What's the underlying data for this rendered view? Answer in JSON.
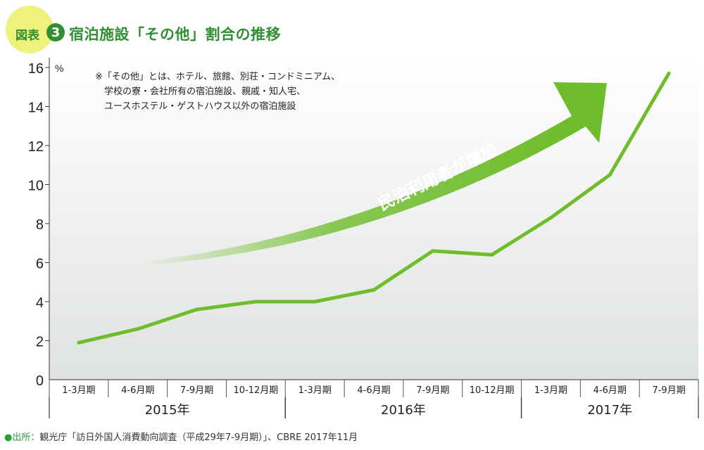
{
  "header": {
    "label": "図表",
    "number": "3",
    "title": "宿泊施設「その他」割合の推移"
  },
  "note": [
    "※「その他」とは、ホテル、旅館、別荘・コンドミニアム、",
    "学校の寮・会社所有の宿泊施設、親戚・知人宅、",
    "ユースホステル・ゲストハウス以外の宿泊施設"
  ],
  "arrow_label": "民泊利用者が増加",
  "source": {
    "bullet": "●",
    "label": "出所：",
    "text": "観光庁「訪日外国人消費動向調査（平成29年7-9月期）」、CBRE 2017年11月"
  },
  "colors": {
    "accent": "#2f8f32",
    "line": "#6fbd2c",
    "badge": "#eef17a",
    "source": "#2aa03a"
  },
  "chart_data": {
    "type": "line",
    "title": "宿泊施設「その他」割合の推移",
    "yunit": "%",
    "ylim": [
      0,
      16
    ],
    "yticks": [
      0,
      2,
      4,
      6,
      8,
      10,
      12,
      14,
      16
    ],
    "grid": false,
    "categories": [
      "1-3月期",
      "4-6月期",
      "7-9月期",
      "10-12月期",
      "1-3月期",
      "4-6月期",
      "7-9月期",
      "10-12月期",
      "1-3月期",
      "4-6月期",
      "7-9月期"
    ],
    "years": [
      {
        "label": "2015年",
        "start": 0,
        "end": 3
      },
      {
        "label": "2016年",
        "start": 4,
        "end": 7
      },
      {
        "label": "2017年",
        "start": 8,
        "end": 10
      }
    ],
    "series": [
      {
        "values": [
          1.9,
          2.6,
          3.6,
          4.0,
          4.0,
          4.6,
          6.6,
          6.4,
          8.3,
          10.5,
          15.7
        ]
      }
    ]
  }
}
